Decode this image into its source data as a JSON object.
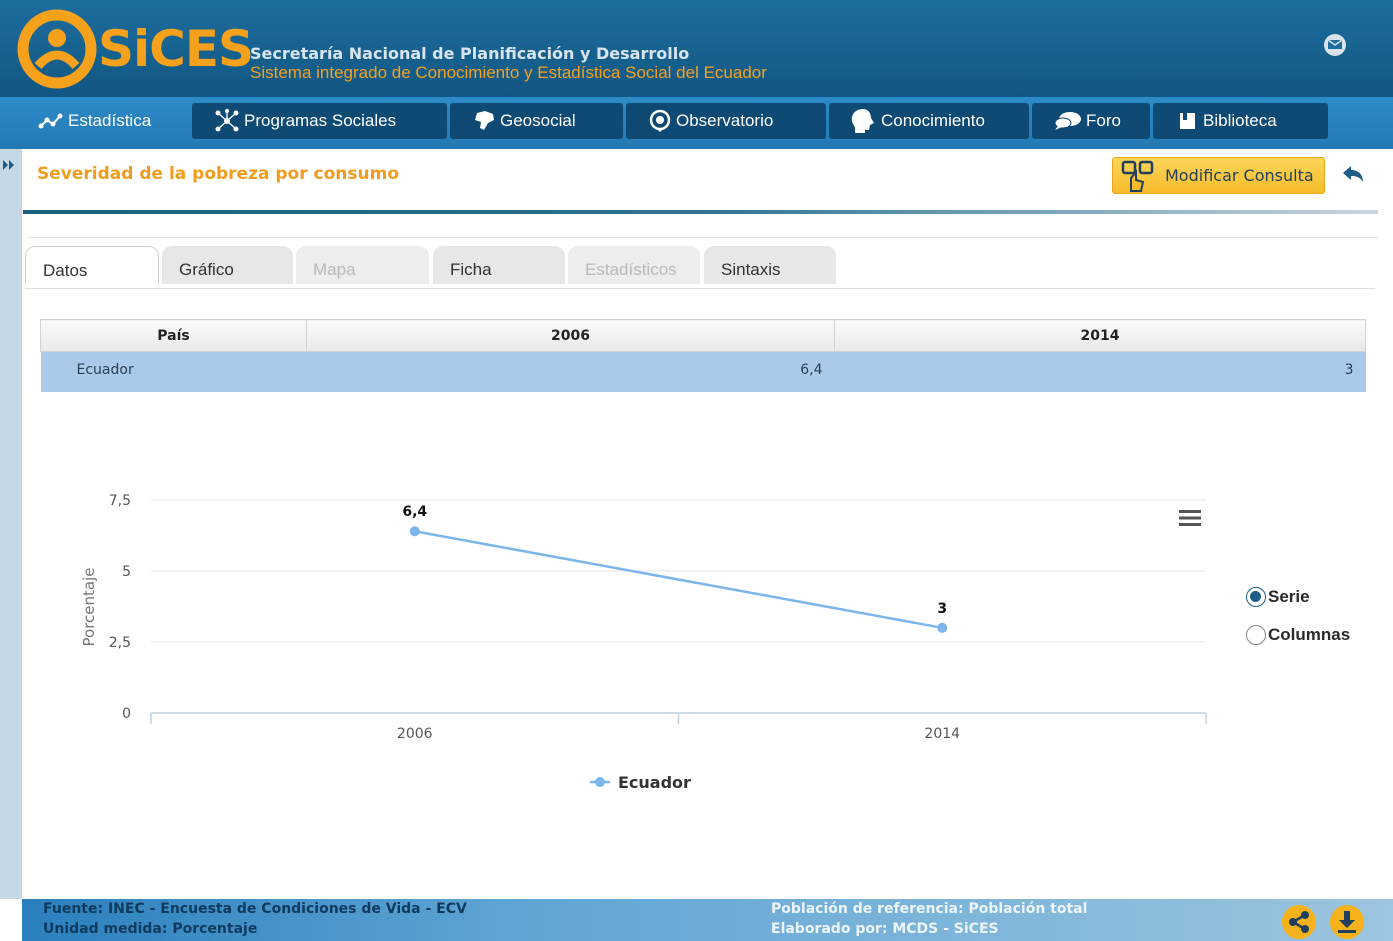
{
  "header": {
    "logo_text": "SiCES",
    "org_line1": "Secretaría Nacional de Planificación y Desarrollo",
    "org_line2": "Sistema integrado de Conocimiento y Estadística Social del Ecuador"
  },
  "nav": {
    "items": [
      {
        "label": "Estadística",
        "icon": "chart-line-icon"
      },
      {
        "label": "Programas Sociales",
        "icon": "network-icon"
      },
      {
        "label": "Geosocial",
        "icon": "map-shape-icon"
      },
      {
        "label": "Observatorio",
        "icon": "location-pin-icon"
      },
      {
        "label": "Conocimiento",
        "icon": "head-icon"
      },
      {
        "label": "Foro",
        "icon": "chat-bubbles-icon"
      },
      {
        "label": "Biblioteca",
        "icon": "book-icon"
      }
    ]
  },
  "page": {
    "title": "Severidad de la pobreza por consumo",
    "modify_label": "Modificar Consulta"
  },
  "tabs": [
    {
      "label": "Datos",
      "state": "active"
    },
    {
      "label": "Gráfico",
      "state": "normal"
    },
    {
      "label": "Mapa",
      "state": "disabled"
    },
    {
      "label": "Ficha",
      "state": "normal"
    },
    {
      "label": "Estadísticos",
      "state": "disabled"
    },
    {
      "label": "Sintaxis",
      "state": "normal"
    }
  ],
  "table": {
    "headers": [
      "País",
      "2006",
      "2014"
    ],
    "rows": [
      [
        "Ecuador",
        "6,4",
        "3"
      ]
    ]
  },
  "chart_data": {
    "type": "line",
    "x": [
      "2006",
      "2014"
    ],
    "series": [
      {
        "name": "Ecuador",
        "values": [
          6.4,
          3
        ],
        "labels": [
          "6,4",
          "3"
        ],
        "color": "#7cb5ec"
      }
    ],
    "ylabel": "Porcentaje",
    "ylim": [
      0,
      7.5
    ],
    "yticks": [
      "0",
      "2,5",
      "5",
      "7,5"
    ],
    "grid": true,
    "legend": "bottom"
  },
  "view_options": {
    "serie_label": "Serie",
    "columnas_label": "Columnas",
    "selected": "Serie"
  },
  "footer": {
    "fuente": "Fuente: INEC - Encuesta de Condiciones de Vida - ECV",
    "unidad": "Unidad medida: Porcentaje",
    "poblacion": "Población de referencia: Población total",
    "elaborado": "Elaborado por: MCDS - SiCES"
  },
  "colors": {
    "accent": "#f09c1c",
    "header_bg": "#17618f",
    "nav_bg": "#2478b4",
    "series": "#7cb5ec"
  }
}
